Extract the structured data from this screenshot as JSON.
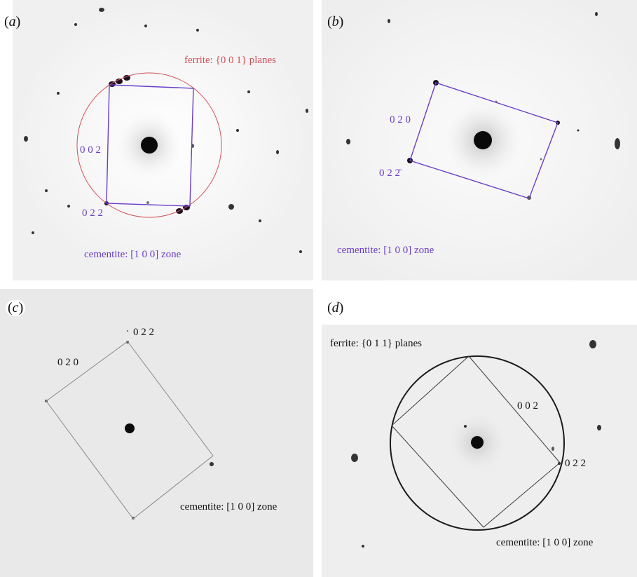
{
  "figure": {
    "colors": {
      "ferrite_red": "#d2505a",
      "cementite_purple": "#6a3ec8",
      "line_gray": "#8a8a8a",
      "circle_black": "#1a1a1a"
    },
    "panels": [
      {
        "id": "a",
        "label_open": "(",
        "label_letter": "a",
        "label_close": ")",
        "title": "ferrite: {0 0 1} planes",
        "zone": "cementite: [1 0 0] zone",
        "spot_label_1": "0 0 2",
        "spot_label_2": "0 2 2"
      },
      {
        "id": "b",
        "label_open": "(",
        "label_letter": "b",
        "label_close": ")",
        "zone": "cementite: [1 0 0] zone",
        "spot_label_1": "0 2 0",
        "spot_label_2": "0 2 2̄"
      },
      {
        "id": "c",
        "label_open": "(",
        "label_letter": "c",
        "label_close": ")",
        "zone": "cementite: [1 0 0] zone",
        "spot_label_1": "0 2 2",
        "spot_label_2": "0 2 0"
      },
      {
        "id": "d",
        "label_open": "(",
        "label_letter": "d",
        "label_close": ")",
        "title": "ferrite: {0 1 1} planes",
        "zone": "cementite: [1 0 0] zone",
        "spot_label_1": "0 0 2",
        "spot_label_2": "0 2 2"
      }
    ]
  }
}
